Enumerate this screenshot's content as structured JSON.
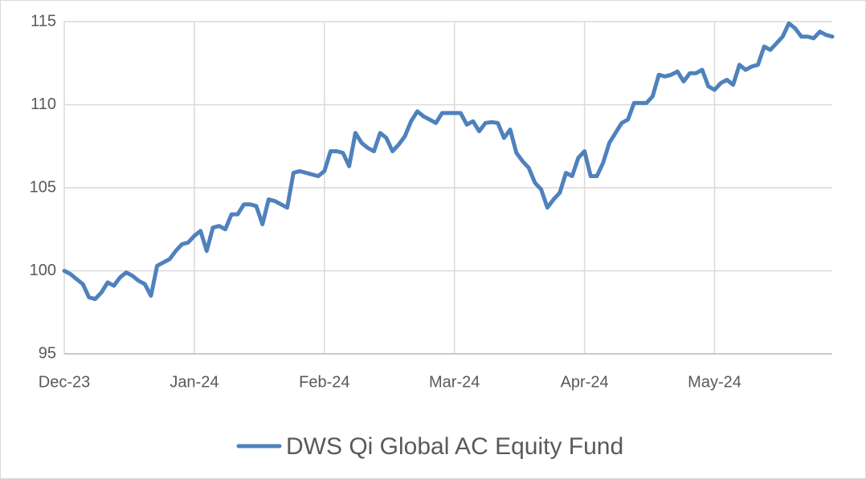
{
  "chart_data": {
    "type": "line",
    "categories": [
      "Dec-23",
      null,
      null,
      null,
      null,
      null,
      null,
      null,
      null,
      null,
      null,
      null,
      null,
      null,
      null,
      null,
      null,
      null,
      null,
      null,
      null,
      "Jan-24",
      null,
      null,
      null,
      null,
      null,
      null,
      null,
      null,
      null,
      null,
      null,
      null,
      null,
      null,
      null,
      null,
      null,
      null,
      null,
      null,
      "Feb-24",
      null,
      null,
      null,
      null,
      null,
      null,
      null,
      null,
      null,
      null,
      null,
      null,
      null,
      null,
      null,
      null,
      null,
      null,
      null,
      null,
      "Mar-24",
      null,
      null,
      null,
      null,
      null,
      null,
      null,
      null,
      null,
      null,
      null,
      null,
      null,
      null,
      null,
      null,
      null,
      null,
      null,
      null,
      "Apr-24",
      null,
      null,
      null,
      null,
      null,
      null,
      null,
      null,
      null,
      null,
      null,
      null,
      null,
      null,
      null,
      null,
      null,
      null,
      null,
      null,
      "May-24",
      null,
      null,
      null,
      null,
      null,
      null,
      null,
      null,
      null,
      null,
      null,
      null,
      null,
      null,
      null,
      null,
      null,
      null,
      null
    ],
    "series": [
      {
        "name": "DWS Qi Global AC Equity Fund",
        "color": "#4f81bd",
        "values": [
          100.0,
          99.8,
          99.5,
          99.2,
          98.4,
          98.3,
          98.7,
          99.3,
          99.1,
          99.6,
          99.9,
          99.7,
          99.4,
          99.2,
          98.5,
          100.3,
          100.5,
          100.7,
          101.2,
          101.6,
          101.7,
          102.1,
          102.4,
          101.2,
          102.6,
          102.7,
          102.5,
          103.4,
          103.4,
          104.0,
          104.0,
          103.9,
          102.8,
          104.3,
          104.2,
          104.0,
          103.8,
          105.9,
          106.0,
          105.9,
          105.8,
          105.7,
          106.0,
          107.2,
          107.2,
          107.1,
          106.3,
          108.3,
          107.7,
          107.4,
          107.2,
          108.3,
          108.0,
          107.2,
          107.6,
          108.1,
          109.0,
          109.6,
          109.3,
          109.1,
          108.9,
          109.5,
          109.5,
          109.5,
          109.5,
          108.8,
          109.0,
          108.4,
          108.9,
          108.95,
          108.9,
          108.0,
          108.5,
          107.1,
          106.6,
          106.2,
          105.3,
          104.9,
          103.8,
          104.3,
          104.7,
          105.9,
          105.7,
          106.8,
          107.2,
          105.7,
          105.7,
          106.5,
          107.7,
          108.3,
          108.9,
          109.1,
          110.1,
          110.1,
          110.1,
          110.5,
          111.8,
          111.7,
          111.8,
          112.0,
          111.4,
          111.9,
          111.9,
          112.1,
          111.1,
          110.9,
          111.3,
          111.5,
          111.2,
          112.4,
          112.1,
          112.3,
          112.4,
          113.5,
          113.3,
          113.7,
          114.1,
          114.9,
          114.6,
          114.1,
          114.1,
          114.0,
          114.4,
          114.2,
          114.1
        ]
      }
    ],
    "ylim": [
      95,
      115
    ],
    "yticks": [
      95,
      100,
      105,
      110,
      115
    ],
    "grid": true,
    "legend": "bottom"
  }
}
